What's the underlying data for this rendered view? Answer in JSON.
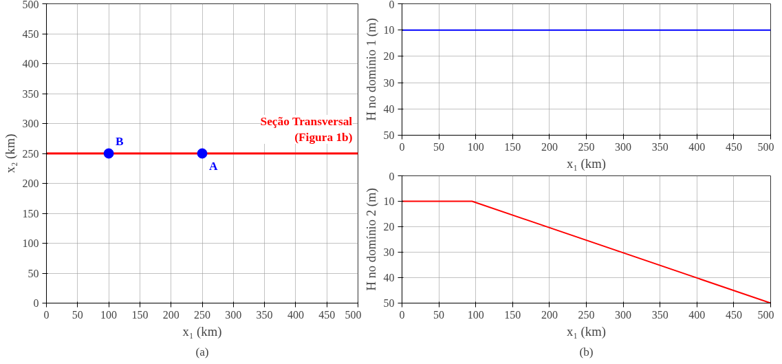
{
  "chart_data": [
    {
      "type": "line",
      "xlabel": "x₁ (km)",
      "ylabel": "x₂ (km)",
      "xlim": [
        0,
        500
      ],
      "ylim": [
        0,
        500
      ],
      "xticks": [
        0,
        50,
        100,
        150,
        200,
        250,
        300,
        350,
        400,
        450,
        500
      ],
      "yticks": [
        0,
        50,
        100,
        150,
        200,
        250,
        300,
        350,
        400,
        450,
        500
      ],
      "grid": true,
      "series": [
        {
          "type": "line",
          "color": "#ff0000",
          "x": [
            0,
            500
          ],
          "values": [
            250,
            250
          ]
        },
        {
          "type": "scatter",
          "color": "#0000ff",
          "marker": "circle",
          "x": [
            100,
            250
          ],
          "values": [
            250,
            250
          ]
        }
      ],
      "annotations": [
        {
          "text": "Seção Transversal\n(Figura 1b)",
          "x": 500,
          "y": 250
        },
        {
          "text": "A",
          "x": 250,
          "y": 250
        },
        {
          "text": "B",
          "x": 100,
          "y": 250
        },
        "(a)"
      ]
    },
    {
      "type": "line",
      "xlabel": "x₁ (km)",
      "ylabel": "H no domínio 1 (m)",
      "xlim": [
        0,
        500
      ],
      "ylim": [
        50,
        0
      ],
      "xticks": [
        0,
        50,
        100,
        150,
        200,
        250,
        300,
        350,
        400,
        450,
        500
      ],
      "yticks": [
        0,
        10,
        20,
        30,
        40,
        50
      ],
      "grid": true,
      "series": [
        {
          "color": "#0000ff",
          "x": [
            0,
            500
          ],
          "values": [
            10,
            10
          ]
        }
      ]
    },
    {
      "type": "line",
      "xlabel": "x₁ (km)",
      "ylabel": "H no domínio 2 (m)",
      "xlim": [
        0,
        500
      ],
      "ylim": [
        50,
        0
      ],
      "xticks": [
        0,
        50,
        100,
        150,
        200,
        250,
        300,
        350,
        400,
        450,
        500
      ],
      "yticks": [
        0,
        10,
        20,
        30,
        40,
        50
      ],
      "grid": true,
      "series": [
        {
          "color": "#ff0000",
          "x": [
            0,
            95,
            500
          ],
          "values": [
            10,
            10,
            50
          ]
        }
      ],
      "annotations": [
        "(b)"
      ]
    }
  ]
}
